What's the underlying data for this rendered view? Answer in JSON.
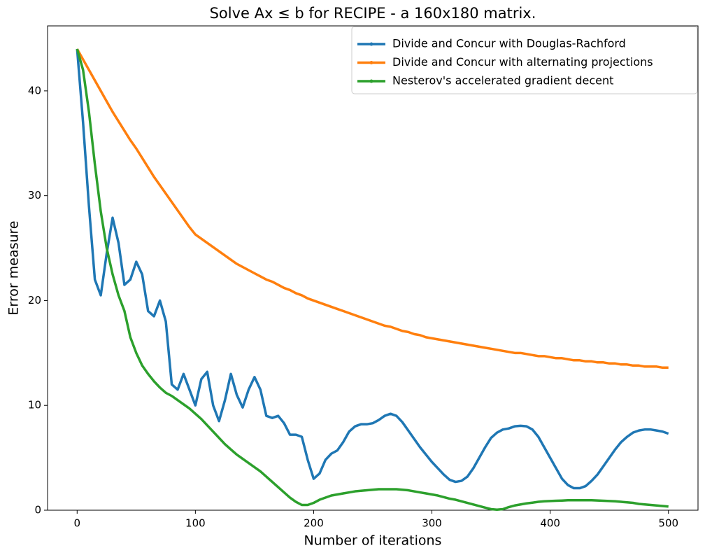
{
  "chart_data": {
    "type": "line",
    "title": "Solve Ax ≤ b for RECIPE - a 160x180 matrix.",
    "x_label": "Number of iterations",
    "y_label": "Error measure",
    "x": [
      0,
      5,
      10,
      15,
      20,
      25,
      30,
      35,
      40,
      45,
      50,
      55,
      60,
      65,
      70,
      75,
      80,
      85,
      90,
      95,
      100,
      105,
      110,
      115,
      120,
      125,
      130,
      135,
      140,
      145,
      150,
      155,
      160,
      165,
      170,
      175,
      180,
      185,
      190,
      195,
      200,
      205,
      210,
      215,
      220,
      225,
      230,
      235,
      240,
      245,
      250,
      255,
      260,
      265,
      270,
      275,
      280,
      285,
      290,
      295,
      300,
      305,
      310,
      315,
      320,
      325,
      330,
      335,
      340,
      345,
      350,
      355,
      360,
      365,
      370,
      375,
      380,
      385,
      390,
      395,
      400,
      405,
      410,
      415,
      420,
      425,
      430,
      435,
      440,
      445,
      450,
      455,
      460,
      465,
      470,
      475,
      480,
      485,
      490,
      495,
      500
    ],
    "series": [
      {
        "name": "Divide and Concur with Douglas-Rachford",
        "color": "#1f77b4",
        "values": [
          44,
          37,
          29,
          22,
          20.5,
          24.5,
          27.9,
          25.5,
          21.5,
          22,
          23.7,
          22.5,
          19,
          18.5,
          20,
          18,
          12,
          11.5,
          13,
          11.5,
          10,
          12.5,
          13.2,
          10,
          8.5,
          10.5,
          13,
          11,
          9.8,
          11.5,
          12.7,
          11.5,
          9,
          8.8,
          9,
          8.3,
          7.2,
          7.2,
          7.0,
          4.8,
          3.0,
          3.5,
          4.8,
          5.4,
          5.7,
          6.5,
          7.5,
          8.0,
          8.2,
          8.2,
          8.3,
          8.6,
          9.0,
          9.2,
          9.0,
          8.4,
          7.6,
          6.8,
          6.0,
          5.3,
          4.6,
          4.0,
          3.4,
          2.9,
          2.7,
          2.8,
          3.2,
          4.0,
          5.0,
          6.0,
          6.9,
          7.4,
          7.7,
          7.8,
          8.0,
          8.05,
          8.0,
          7.7,
          7.0,
          6.0,
          5.0,
          4.0,
          3.0,
          2.4,
          2.1,
          2.1,
          2.3,
          2.8,
          3.4,
          4.2,
          5.0,
          5.8,
          6.5,
          7.0,
          7.4,
          7.6,
          7.7,
          7.7,
          7.6,
          7.5,
          7.3
        ]
      },
      {
        "name": "Divide and Concur with alternating projections",
        "color": "#ff7f0e",
        "values": [
          44,
          43.0,
          42.0,
          41.0,
          40.0,
          39.0,
          38.0,
          37.1,
          36.2,
          35.3,
          34.5,
          33.6,
          32.7,
          31.8,
          31.0,
          30.2,
          29.4,
          28.6,
          27.8,
          27.0,
          26.3,
          25.9,
          25.5,
          25.1,
          24.7,
          24.3,
          23.9,
          23.5,
          23.2,
          22.9,
          22.6,
          22.3,
          22.0,
          21.8,
          21.5,
          21.2,
          21.0,
          20.7,
          20.5,
          20.2,
          20.0,
          19.8,
          19.6,
          19.4,
          19.2,
          19.0,
          18.8,
          18.6,
          18.4,
          18.2,
          18.0,
          17.8,
          17.6,
          17.5,
          17.3,
          17.1,
          17.0,
          16.8,
          16.7,
          16.5,
          16.4,
          16.3,
          16.2,
          16.1,
          16.0,
          15.9,
          15.8,
          15.7,
          15.6,
          15.5,
          15.4,
          15.3,
          15.2,
          15.1,
          15.0,
          15.0,
          14.9,
          14.8,
          14.7,
          14.7,
          14.6,
          14.5,
          14.5,
          14.4,
          14.3,
          14.3,
          14.2,
          14.2,
          14.1,
          14.1,
          14.0,
          14.0,
          13.9,
          13.9,
          13.8,
          13.8,
          13.7,
          13.7,
          13.7,
          13.6,
          13.6
        ]
      },
      {
        "name": "Nesterov's accelerated gradient decent",
        "color": "#2ca02c",
        "values": [
          44,
          42,
          38,
          33,
          28.5,
          25,
          22.5,
          20.5,
          19,
          16.5,
          15,
          13.8,
          13,
          12.3,
          11.7,
          11.2,
          10.9,
          10.5,
          10.1,
          9.7,
          9.2,
          8.7,
          8.1,
          7.5,
          6.9,
          6.3,
          5.8,
          5.3,
          4.9,
          4.5,
          4.1,
          3.7,
          3.2,
          2.7,
          2.2,
          1.7,
          1.2,
          0.8,
          0.5,
          0.5,
          0.7,
          1.0,
          1.2,
          1.4,
          1.5,
          1.6,
          1.7,
          1.8,
          1.85,
          1.9,
          1.95,
          2.0,
          2.0,
          2.0,
          2.0,
          1.95,
          1.9,
          1.8,
          1.7,
          1.6,
          1.5,
          1.4,
          1.25,
          1.1,
          1.0,
          0.85,
          0.7,
          0.55,
          0.4,
          0.25,
          0.1,
          0.05,
          0.1,
          0.3,
          0.45,
          0.55,
          0.65,
          0.72,
          0.8,
          0.85,
          0.88,
          0.9,
          0.92,
          0.95,
          0.95,
          0.95,
          0.95,
          0.95,
          0.93,
          0.9,
          0.88,
          0.85,
          0.8,
          0.75,
          0.7,
          0.6,
          0.55,
          0.5,
          0.45,
          0.4,
          0.35
        ]
      }
    ],
    "xlim": [
      -25,
      525
    ],
    "ylim": [
      0,
      46.2
    ],
    "xticks": [
      0,
      100,
      200,
      300,
      400,
      500
    ],
    "yticks": [
      0,
      10,
      20,
      30,
      40
    ],
    "grid": false,
    "legend": "upper right"
  }
}
